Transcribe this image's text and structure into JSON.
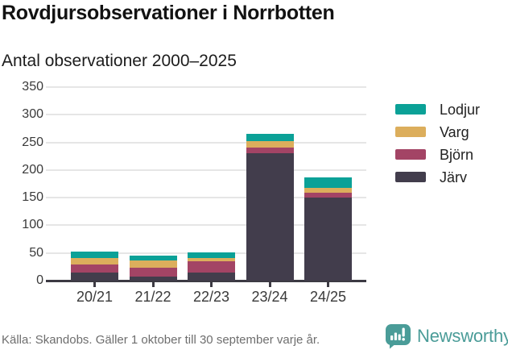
{
  "title": "Rovdjursobservationer i Norrbotten",
  "subtitle": "Antal observationer 2000–2025",
  "footer": {
    "source": "Källa: Skandobs. Gäller 1 oktober till 30 september varje år.",
    "brand": "Newsworthy"
  },
  "colors": {
    "lodjur": "#0ba197",
    "varg": "#dcae5c",
    "bjorn": "#a34465",
    "jarv": "#423d4c",
    "grid": "#e6e6e6",
    "axis": "#3c3a43",
    "brand_teal": "#4a9c98"
  },
  "chart_data": {
    "type": "bar",
    "stacked": true,
    "title": "Rovdjursobservationer i Norrbotten",
    "subtitle": "Antal observationer 2000–2025",
    "categories": [
      "20/21",
      "21/22",
      "22/23",
      "23/24",
      "24/25"
    ],
    "series": [
      {
        "name": "Järv",
        "color": "#423d4c",
        "values": [
          14,
          7,
          14,
          231,
          150
        ]
      },
      {
        "name": "Björn",
        "color": "#a34465",
        "values": [
          15,
          17,
          21,
          10,
          9
        ]
      },
      {
        "name": "Varg",
        "color": "#dcae5c",
        "values": [
          12,
          13,
          6,
          11,
          8
        ]
      },
      {
        "name": "Lodjur",
        "color": "#0ba197",
        "values": [
          11,
          8,
          10,
          13,
          20
        ]
      }
    ],
    "totals": [
      52,
      45,
      51,
      265,
      187
    ],
    "legend": [
      "Lodjur",
      "Varg",
      "Björn",
      "Järv"
    ],
    "legend_position": "right",
    "xlabel": "",
    "ylabel": "",
    "ylim": [
      0,
      350
    ],
    "yticks": [
      0,
      50,
      100,
      150,
      200,
      250,
      300,
      350
    ],
    "grid": true
  }
}
